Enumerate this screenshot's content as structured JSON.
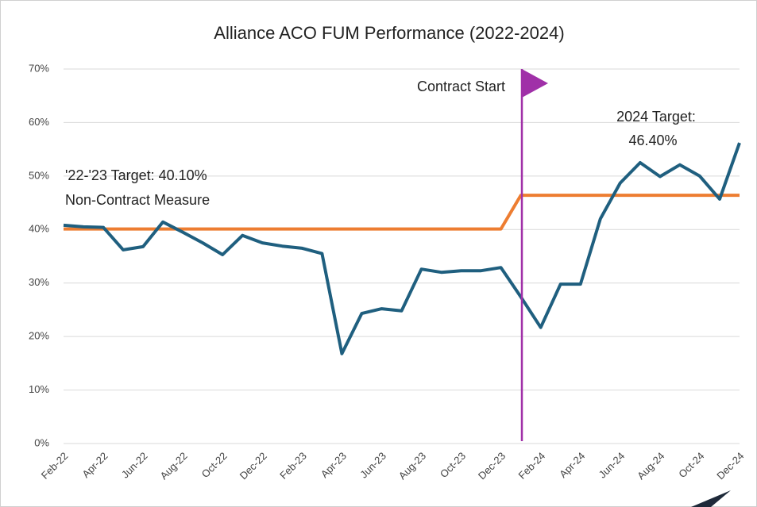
{
  "chart_data": {
    "type": "line",
    "title": "Alliance ACO FUM Performance (2022-2024)",
    "categories": [
      "Feb-22",
      null,
      "Apr-22",
      null,
      "Jun-22",
      null,
      "Aug-22",
      null,
      "Oct-22",
      null,
      "Dec-22",
      null,
      "Feb-23",
      null,
      "Apr-23",
      null,
      "Jun-23",
      null,
      "Aug-23",
      null,
      "Oct-23",
      null,
      "Dec-23",
      null,
      "Feb-24",
      null,
      "Apr-24",
      null,
      "Jun-24",
      null,
      "Aug-24",
      null,
      "Oct-24",
      null,
      "Dec-24"
    ],
    "series": [
      {
        "color": "#1f5f7f",
        "values": [
          40.8,
          40.5,
          40.4,
          36.2,
          36.8,
          41.4,
          39.5,
          37.5,
          35.3,
          38.9,
          37.5,
          36.9,
          36.5,
          35.5,
          16.8,
          24.3,
          25.2,
          24.8,
          32.6,
          32.0,
          32.3,
          32.3,
          32.9,
          27.4,
          21.7,
          29.8,
          29.8,
          42.0,
          48.7,
          52.5,
          49.9,
          52.1,
          50.0,
          45.7,
          56.2
        ]
      },
      {
        "color": "#ed7d31",
        "values": [
          40.1,
          40.1,
          40.1,
          40.1,
          40.1,
          40.1,
          40.1,
          40.1,
          40.1,
          40.1,
          40.1,
          40.1,
          40.1,
          40.1,
          40.1,
          40.1,
          40.1,
          40.1,
          40.1,
          40.1,
          40.1,
          40.1,
          40.1,
          46.4,
          46.4,
          46.4,
          46.4,
          46.4,
          46.4,
          46.4,
          46.4,
          46.4,
          46.4,
          46.4,
          46.4
        ]
      }
    ],
    "ylim": [
      0,
      70
    ],
    "yticks": [
      {
        "value": 0,
        "label": "0%"
      },
      {
        "value": 10,
        "label": "10%"
      },
      {
        "value": 20,
        "label": "20%"
      },
      {
        "value": 30,
        "label": "30%"
      },
      {
        "value": 40,
        "label": "40%"
      },
      {
        "value": 50,
        "label": "50%"
      },
      {
        "value": 60,
        "label": "60%"
      },
      {
        "value": 70,
        "label": "70%"
      }
    ],
    "annotations": {
      "contract": "Contract Start",
      "target_2024": "2024 Target:",
      "target_2024_value": "46.40%",
      "target_2223": "'22-'23 Target: 40.10%",
      "target_2223_note": "Non-Contract Measure"
    }
  }
}
